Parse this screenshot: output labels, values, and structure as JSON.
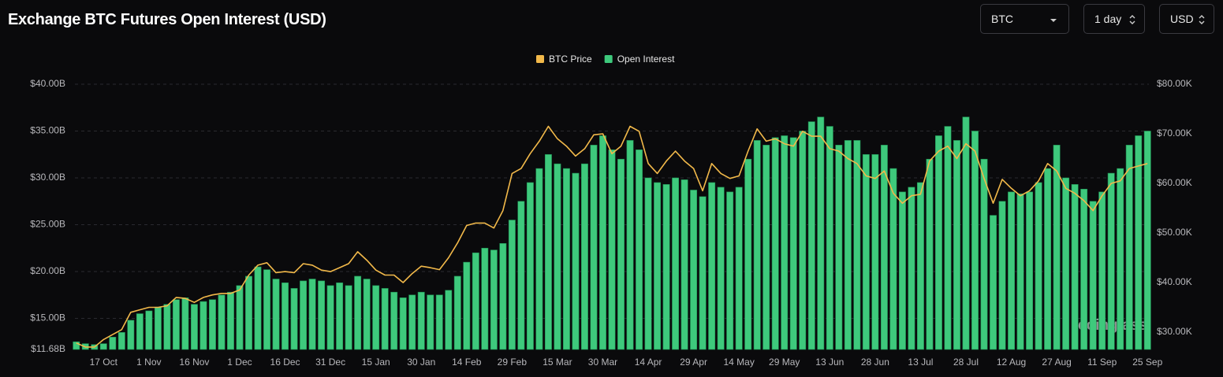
{
  "header": {
    "title": "Exchange BTC Futures Open Interest (USD)"
  },
  "controls": {
    "coin": "BTC",
    "interval": "1 day",
    "currency": "USD"
  },
  "chart_data": {
    "type": "combo",
    "watermark": "coinglass",
    "categories": [
      null,
      null,
      null,
      "17 Oct",
      null,
      null,
      null,
      null,
      "1 Nov",
      null,
      null,
      null,
      null,
      "16 Nov",
      null,
      null,
      null,
      null,
      "1 Dec",
      null,
      null,
      null,
      null,
      "16 Dec",
      null,
      null,
      null,
      null,
      "31 Dec",
      null,
      null,
      null,
      null,
      "15 Jan",
      null,
      null,
      null,
      null,
      "30 Jan",
      null,
      null,
      null,
      null,
      "14 Feb",
      null,
      null,
      null,
      null,
      "29 Feb",
      null,
      null,
      null,
      null,
      "15 Mar",
      null,
      null,
      null,
      null,
      "30 Mar",
      null,
      null,
      null,
      null,
      "14 Apr",
      null,
      null,
      null,
      null,
      "29 Apr",
      null,
      null,
      null,
      null,
      "14 May",
      null,
      null,
      null,
      null,
      "29 May",
      null,
      null,
      null,
      null,
      "13 Jun",
      null,
      null,
      null,
      null,
      "28 Jun",
      null,
      null,
      null,
      null,
      "13 Jul",
      null,
      null,
      null,
      null,
      "28 Jul",
      null,
      null,
      null,
      null,
      "12 Aug",
      null,
      null,
      null,
      null,
      "27 Aug",
      null,
      null,
      null,
      null,
      "11 Sep",
      null,
      null,
      null,
      null,
      "25 Sep"
    ],
    "series": [
      {
        "name": "BTC Price",
        "type": "line",
        "axis": "y2",
        "color": "#f2b94a",
        "values": [
          27.8,
          27.0,
          27.0,
          28.5,
          29.5,
          30.5,
          34.0,
          34.5,
          35.0,
          35.0,
          35.3,
          37.0,
          36.8,
          36.0,
          37.0,
          37.5,
          37.8,
          37.8,
          38.5,
          41.5,
          43.5,
          44.0,
          42.0,
          42.2,
          42.0,
          43.8,
          43.5,
          42.5,
          42.2,
          43.0,
          43.8,
          46.2,
          44.5,
          42.5,
          41.5,
          41.5,
          40.0,
          41.8,
          43.3,
          43.0,
          42.6,
          45.0,
          48.0,
          51.5,
          52.0,
          52.0,
          51.0,
          54.5,
          62.0,
          63.0,
          66.0,
          68.5,
          71.5,
          69.0,
          67.5,
          65.5,
          67.0,
          69.8,
          70.0,
          66.0,
          67.5,
          71.5,
          70.5,
          64.0,
          62.0,
          64.5,
          66.5,
          64.5,
          63.0,
          58.5,
          64.0,
          62.0,
          61.0,
          61.5,
          66.5,
          71.0,
          68.5,
          69.0,
          68.0,
          67.5,
          70.5,
          69.5,
          69.5,
          67.0,
          66.5,
          65.0,
          64.0,
          61.5,
          61.0,
          62.5,
          58.0,
          56.0,
          57.5,
          57.8,
          64.5,
          66.5,
          67.5,
          65.0,
          68.0,
          66.5,
          61.0,
          56.0,
          60.8,
          59.0,
          57.5,
          58.5,
          60.5,
          64.0,
          62.5,
          59.0,
          58.0,
          56.5,
          54.5,
          57.5,
          60.0,
          60.5,
          63.0,
          63.5,
          64.0
        ]
      },
      {
        "name": "Open Interest",
        "type": "bar",
        "axis": "y",
        "color": "#3ec97c",
        "values": [
          12.5,
          12.3,
          12.2,
          12.3,
          13.0,
          13.5,
          14.8,
          15.5,
          15.8,
          16.2,
          16.5,
          17.0,
          17.2,
          16.5,
          16.8,
          17.0,
          17.5,
          17.8,
          18.5,
          19.5,
          20.5,
          20.2,
          19.2,
          18.8,
          18.2,
          19.0,
          19.2,
          19.0,
          18.5,
          18.8,
          18.5,
          19.5,
          19.2,
          18.5,
          18.2,
          17.8,
          17.2,
          17.5,
          17.8,
          17.5,
          17.5,
          18.0,
          19.5,
          21.0,
          22.0,
          22.5,
          22.3,
          23.0,
          25.5,
          27.5,
          29.5,
          31.0,
          32.5,
          31.5,
          31.0,
          30.5,
          31.5,
          33.5,
          34.5,
          33.0,
          32.0,
          34.0,
          33.0,
          30.0,
          29.5,
          29.3,
          30.0,
          29.8,
          28.7,
          28.0,
          29.5,
          29.0,
          28.5,
          29.0,
          32.0,
          34.0,
          33.5,
          34.3,
          34.5,
          34.3,
          35.0,
          36.0,
          36.5,
          35.5,
          33.5,
          34.0,
          34.0,
          32.5,
          32.5,
          33.5,
          31.0,
          28.5,
          29.0,
          29.5,
          32.0,
          34.5,
          35.5,
          34.0,
          36.5,
          35.0,
          32.0,
          26.0,
          27.5,
          28.5,
          28.3,
          28.5,
          29.5,
          31.0,
          33.5,
          30.0,
          29.3,
          28.8,
          27.5,
          28.5,
          30.5,
          31.0,
          33.5,
          34.5,
          35.0
        ]
      }
    ],
    "ylim": [
      11.68,
      40
    ],
    "yticks": [
      {
        "value": 11.68,
        "label": "$11.68B"
      },
      {
        "value": 15,
        "label": "$15.00B"
      },
      {
        "value": 20,
        "label": "$20.00B"
      },
      {
        "value": 25,
        "label": "$25.00B"
      },
      {
        "value": 30,
        "label": "$30.00B"
      },
      {
        "value": 35,
        "label": "$35.00B"
      },
      {
        "value": 40,
        "label": "$40.00B"
      }
    ],
    "y2lim": [
      26.5,
      80
    ],
    "y2ticks": [
      {
        "value": 30,
        "label": "$30.00K"
      },
      {
        "value": 40,
        "label": "$40.00K"
      },
      {
        "value": 50,
        "label": "$50.00K"
      },
      {
        "value": 60,
        "label": "$60.00K"
      },
      {
        "value": 70,
        "label": "$70.00K"
      },
      {
        "value": 80,
        "label": "$80.00K"
      }
    ],
    "grid": true,
    "legend": "top"
  }
}
